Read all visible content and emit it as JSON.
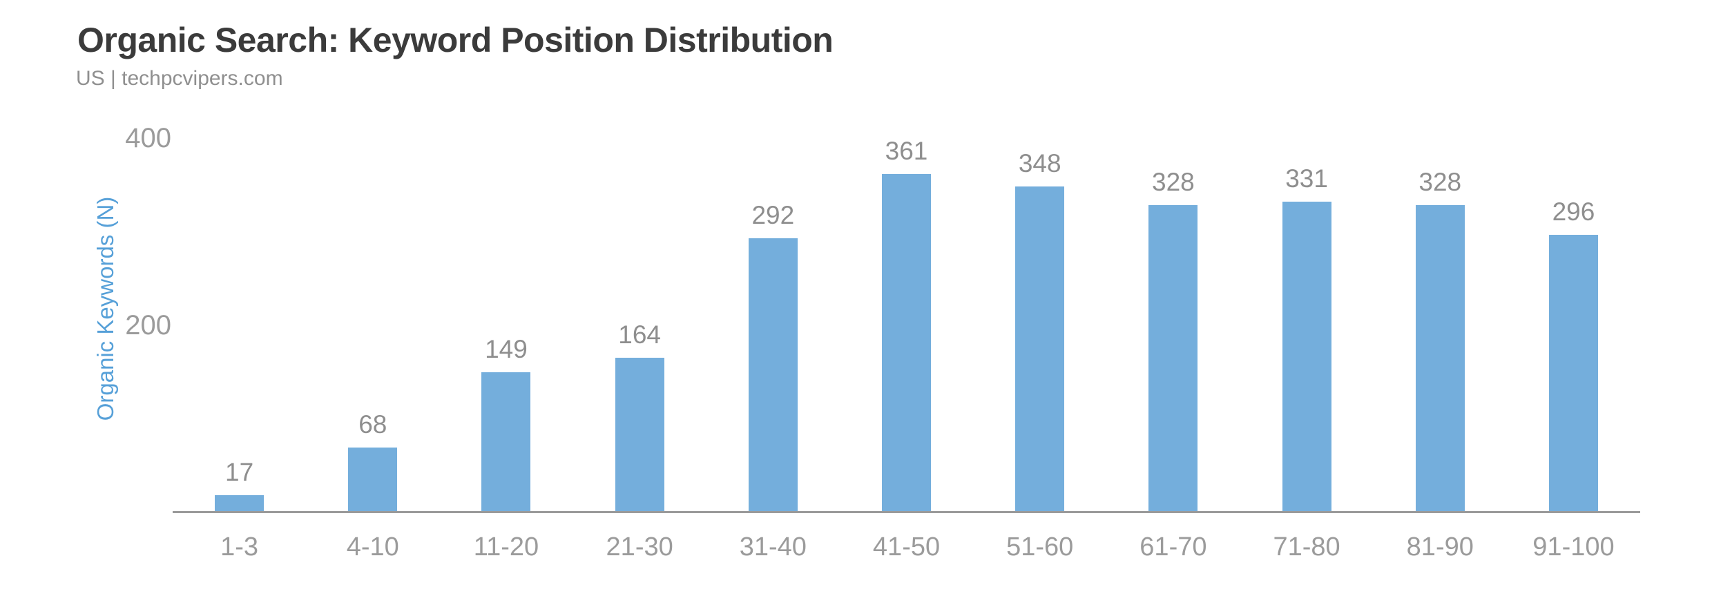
{
  "header": {
    "title": "Organic Search: Keyword Position Distribution",
    "subtitle": "US | techpcvipers.com"
  },
  "chart_data": {
    "type": "bar",
    "title": "Organic Search: Keyword Position Distribution",
    "subtitle": "US | techpcvipers.com",
    "categories": [
      "1-3",
      "4-10",
      "11-20",
      "21-30",
      "31-40",
      "41-50",
      "51-60",
      "61-70",
      "71-80",
      "81-90",
      "91-100"
    ],
    "values": [
      17,
      68,
      149,
      164,
      292,
      361,
      348,
      328,
      331,
      328,
      296
    ],
    "xlabel": "",
    "ylabel": "Organic Keywords (N)",
    "yticks": [
      200,
      400
    ],
    "ylim": [
      0,
      440
    ],
    "grid": false,
    "legend": false,
    "colors": {
      "bar": "#74aedc",
      "axis_line": "#9a9a9a",
      "value_label": "#8e8e8e",
      "tick_label": "#9b9b9b",
      "y_axis_title": "#56a0d8",
      "title": "#3b3b3b",
      "subtitle": "#8f8f8f"
    }
  }
}
